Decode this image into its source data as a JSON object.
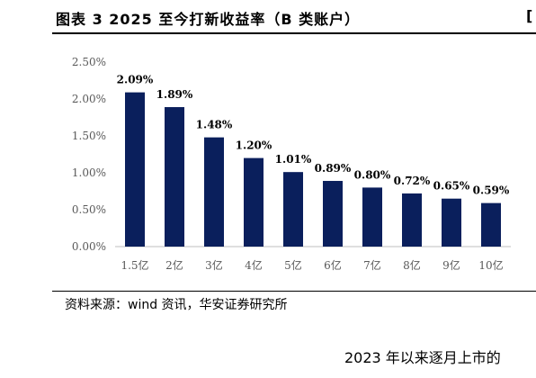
{
  "page": {
    "title": "图表 3 2025 至今打新收益率（B 类账户）",
    "edge_mark": "[",
    "source": "资料来源：wind 资讯，华安证券研究所",
    "continuation": "2023 年以来逐月上市的"
  },
  "chart_data": {
    "type": "bar",
    "title": "",
    "xlabel": "",
    "ylabel": "",
    "categories": [
      "1.5亿",
      "2亿",
      "3亿",
      "4亿",
      "5亿",
      "6亿",
      "7亿",
      "8亿",
      "9亿",
      "10亿"
    ],
    "values": [
      2.09,
      1.89,
      1.48,
      1.2,
      1.01,
      0.89,
      0.8,
      0.72,
      0.65,
      0.59
    ],
    "value_labels": [
      "2.09%",
      "1.89%",
      "1.48%",
      "1.20%",
      "1.01%",
      "0.89%",
      "0.80%",
      "0.72%",
      "0.65%",
      "0.59%"
    ],
    "ylim": [
      0,
      2.5
    ],
    "yticks": [
      0,
      0.5,
      1.0,
      1.5,
      2.0,
      2.5
    ],
    "ytick_labels": [
      "0.00%",
      "0.50%",
      "1.00%",
      "1.50%",
      "2.00%",
      "2.50%"
    ],
    "grid": false,
    "legend": "none",
    "bar_color": "#0a1f5c"
  }
}
